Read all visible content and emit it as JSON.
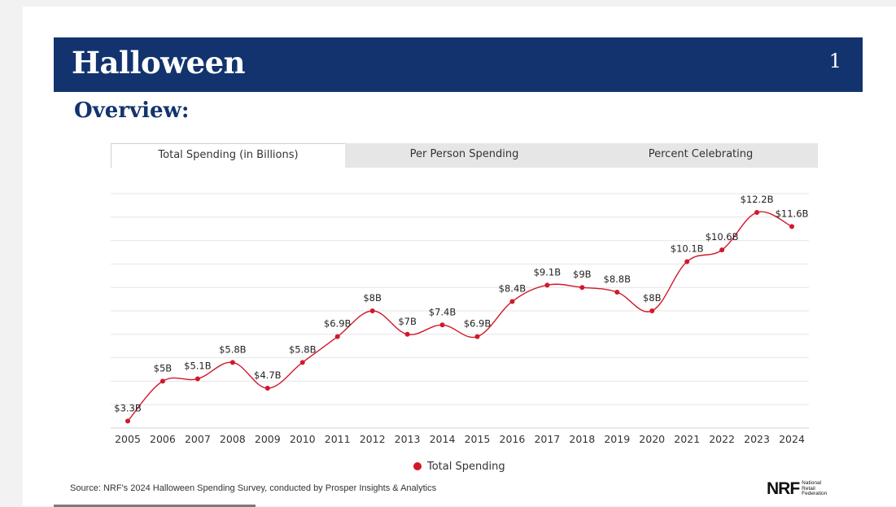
{
  "header": {
    "title": "Halloween",
    "page_number": "1"
  },
  "subtitle": "Overview:",
  "tabs": [
    {
      "label": "Total Spending (in Billions)",
      "active": true
    },
    {
      "label": "Per Person Spending",
      "active": false
    },
    {
      "label": "Percent Celebrating",
      "active": false
    }
  ],
  "chart_data": {
    "type": "line",
    "title": "",
    "xlabel": "",
    "ylabel": "",
    "ylim": [
      3,
      13
    ],
    "grid": true,
    "legend_position": "bottom",
    "line_color": "#d1192b",
    "categories": [
      "2005",
      "2006",
      "2007",
      "2008",
      "2009",
      "2010",
      "2011",
      "2012",
      "2013",
      "2014",
      "2015",
      "2016",
      "2017",
      "2018",
      "2019",
      "2020",
      "2021",
      "2022",
      "2023",
      "2024"
    ],
    "series": [
      {
        "name": "Total Spending",
        "values": [
          3.3,
          5.0,
          5.1,
          5.8,
          4.7,
          5.8,
          6.9,
          8.0,
          7.0,
          7.4,
          6.9,
          8.4,
          9.1,
          9.0,
          8.8,
          8.0,
          10.1,
          10.6,
          12.2,
          11.6
        ],
        "labels": [
          "$3.3B",
          "$5B",
          "$5.1B",
          "$5.8B",
          "$4.7B",
          "$5.8B",
          "$6.9B",
          "$8B",
          "$7B",
          "$7.4B",
          "$6.9B",
          "$8.4B",
          "$9.1B",
          "$9B",
          "$8.8B",
          "$8B",
          "$10.1B",
          "$10.6B",
          "$12.2B",
          "$11.6B"
        ]
      }
    ]
  },
  "source": "Source: NRF's 2024 Halloween Spending Survey, conducted by Prosper Insights & Analytics",
  "logo": {
    "mark": "NRF",
    "line1": "National",
    "line2": "Retail",
    "line3": "Federation"
  }
}
